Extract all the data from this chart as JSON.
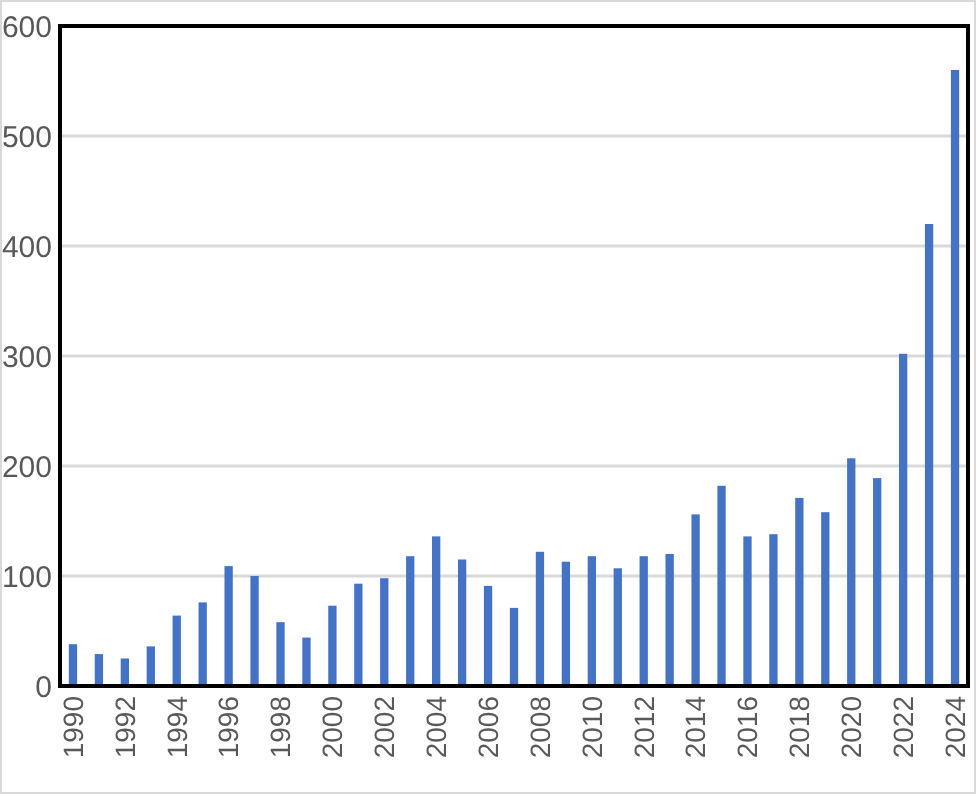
{
  "chart_data": {
    "type": "bar",
    "categories": [
      "1990",
      null,
      "1992",
      null,
      "1994",
      null,
      "1996",
      null,
      "1998",
      null,
      "2000",
      null,
      "2002",
      null,
      "2004",
      null,
      "2006",
      null,
      "2008",
      null,
      "2010",
      null,
      "2012",
      null,
      "2014",
      null,
      "2016",
      null,
      "2018",
      null,
      "2020",
      null,
      "2022",
      null,
      "2024"
    ],
    "values": [
      38,
      29,
      25,
      36,
      64,
      76,
      109,
      100,
      58,
      44,
      73,
      93,
      98,
      118,
      136,
      115,
      91,
      71,
      122,
      113,
      118,
      107,
      118,
      120,
      156,
      182,
      136,
      138,
      171,
      158,
      207,
      189,
      302,
      420,
      560
    ],
    "color": "#4472c4",
    "ylim": [
      0,
      600
    ],
    "yticks": [
      0,
      100,
      200,
      300,
      400,
      500,
      600
    ],
    "grid": "y"
  }
}
